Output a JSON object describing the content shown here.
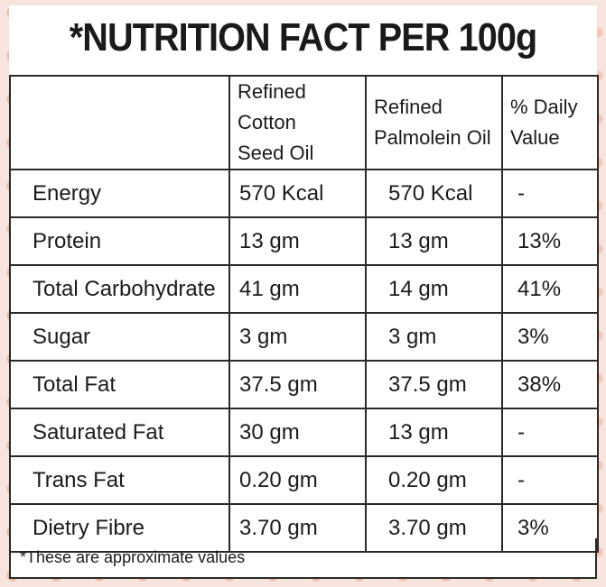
{
  "title": "*NUTRITION FACT PER 100g",
  "table": {
    "headers": [
      {
        "line1": "",
        "line2": ""
      },
      {
        "line1": "Refined Cotton",
        "line2": "Seed Oil"
      },
      {
        "line1": "Refined",
        "line2": "Palmolein Oil"
      },
      {
        "line1": "% Daily",
        "line2": "Value"
      }
    ],
    "rows": [
      {
        "nutrient": "Energy",
        "cotton": "570 Kcal",
        "palmolein": "570 Kcal",
        "daily": "-"
      },
      {
        "nutrient": "Protein",
        "cotton": "13 gm",
        "palmolein": "13 gm",
        "daily": "13%"
      },
      {
        "nutrient": "Total Carbohydrate",
        "cotton": "41 gm",
        "palmolein": "14 gm",
        "daily": "41%"
      },
      {
        "nutrient": "Sugar",
        "cotton": "3 gm",
        "palmolein": "3 gm",
        "daily": "3%"
      },
      {
        "nutrient": "Total Fat",
        "cotton": "37.5 gm",
        "palmolein": "37.5 gm",
        "daily": "38%"
      },
      {
        "nutrient": "Saturated Fat",
        "cotton": "30 gm",
        "palmolein": "13 gm",
        "daily": "-"
      },
      {
        "nutrient": "Trans Fat",
        "cotton": "0.20 gm",
        "palmolein": "0.20 gm",
        "daily": "-"
      },
      {
        "nutrient": "Dietry Fibre",
        "cotton": "3.70 gm",
        "palmolein": "3.70 gm",
        "daily": "3%"
      }
    ]
  },
  "footnote": "*These are approximate values",
  "colors": {
    "background": "#f7e4dc",
    "panel": "#ffffff",
    "border": "#2a2a2a",
    "text": "#1b1b1b"
  }
}
